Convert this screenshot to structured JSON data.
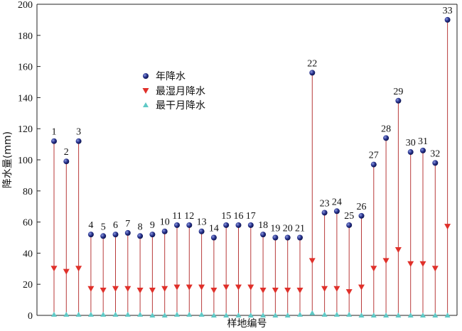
{
  "chart_data": {
    "type": "stem",
    "xlabel": "样地编号",
    "ylabel": "降水量(mm)",
    "ylim": [
      0,
      200
    ],
    "yticks": [
      0,
      20,
      40,
      60,
      80,
      100,
      120,
      140,
      160,
      180,
      200
    ],
    "legend_position": "upper-left-center",
    "grid": false,
    "categories": [
      "1",
      "2",
      "3",
      "4",
      "5",
      "6",
      "7",
      "8",
      "9",
      "10",
      "11",
      "12",
      "13",
      "14",
      "15",
      "16",
      "17",
      "18",
      "19",
      "20",
      "21",
      "22",
      "23",
      "24",
      "25",
      "26",
      "27",
      "28",
      "29",
      "30",
      "31",
      "32",
      "33"
    ],
    "series": [
      {
        "name": "年降水",
        "marker": "circle",
        "color": "#1a237e",
        "values": [
          112,
          99,
          112,
          52,
          51,
          52,
          53,
          51,
          52,
          54,
          58,
          58,
          54,
          50,
          58,
          58,
          58,
          52,
          50,
          50,
          50,
          156,
          66,
          67,
          58,
          64,
          97,
          114,
          138,
          105,
          106,
          98,
          190
        ]
      },
      {
        "name": "最湿月降水",
        "marker": "triangle-down",
        "color": "#e0302a",
        "values": [
          30,
          28,
          30,
          17,
          16,
          17,
          17,
          16,
          16,
          17,
          18,
          18,
          18,
          16,
          18,
          18,
          18,
          16,
          16,
          16,
          16,
          35,
          17,
          17,
          15,
          18,
          30,
          35,
          42,
          33,
          33,
          30,
          57
        ]
      },
      {
        "name": "最干月降水",
        "marker": "triangle-up",
        "color": "#5fc9c6",
        "values": [
          0.5,
          0.5,
          0.5,
          0.5,
          0.5,
          0.5,
          0.5,
          0.5,
          0,
          0,
          0.5,
          0.5,
          0.5,
          0,
          0,
          0,
          0,
          0,
          0,
          0,
          0.5,
          1.5,
          0.5,
          0.5,
          0.5,
          0,
          0,
          0,
          0,
          0,
          0,
          0,
          0
        ]
      }
    ]
  }
}
